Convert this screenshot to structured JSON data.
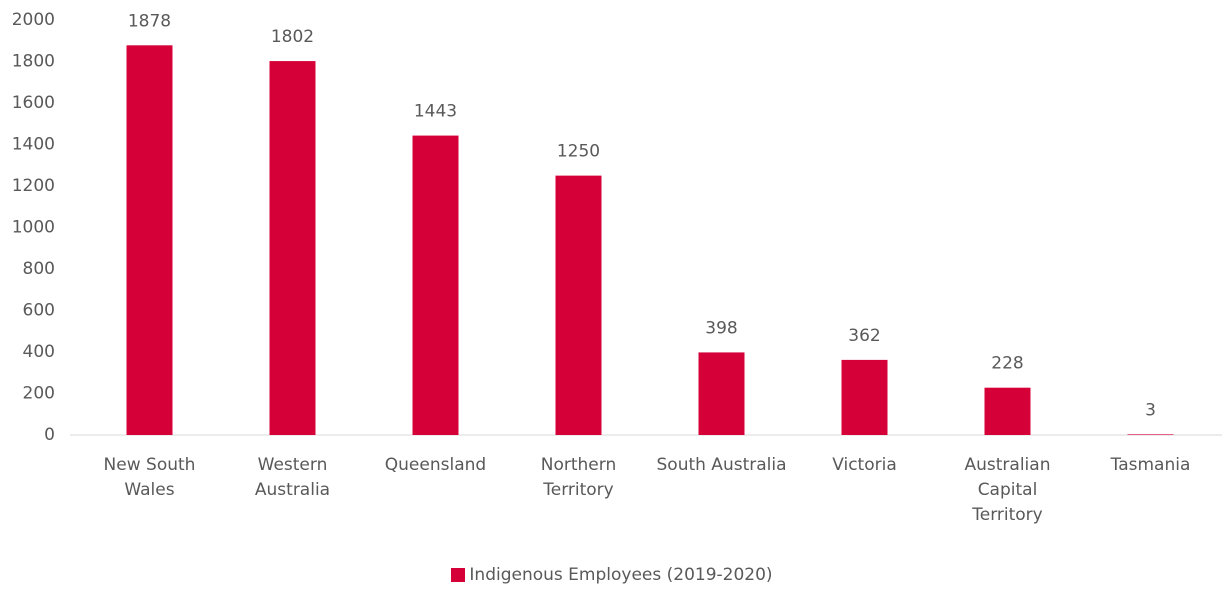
{
  "chart_data": {
    "type": "bar",
    "categories": [
      "New South Wales",
      "Western Australia",
      "Queensland",
      "Northern Territory",
      "South Australia",
      "Victoria",
      "Australian Capital Territory",
      "Tasmania"
    ],
    "series": [
      {
        "name": "Indigenous Employees (2019-2020)",
        "color": "#d50037",
        "values": [
          1878,
          1802,
          1443,
          1250,
          398,
          362,
          228,
          3
        ]
      }
    ],
    "ylim": [
      0,
      2000
    ],
    "yticks": [
      0,
      200,
      400,
      600,
      800,
      1000,
      1200,
      1400,
      1600,
      1800,
      2000
    ],
    "grid": false,
    "legend": "bottom"
  }
}
